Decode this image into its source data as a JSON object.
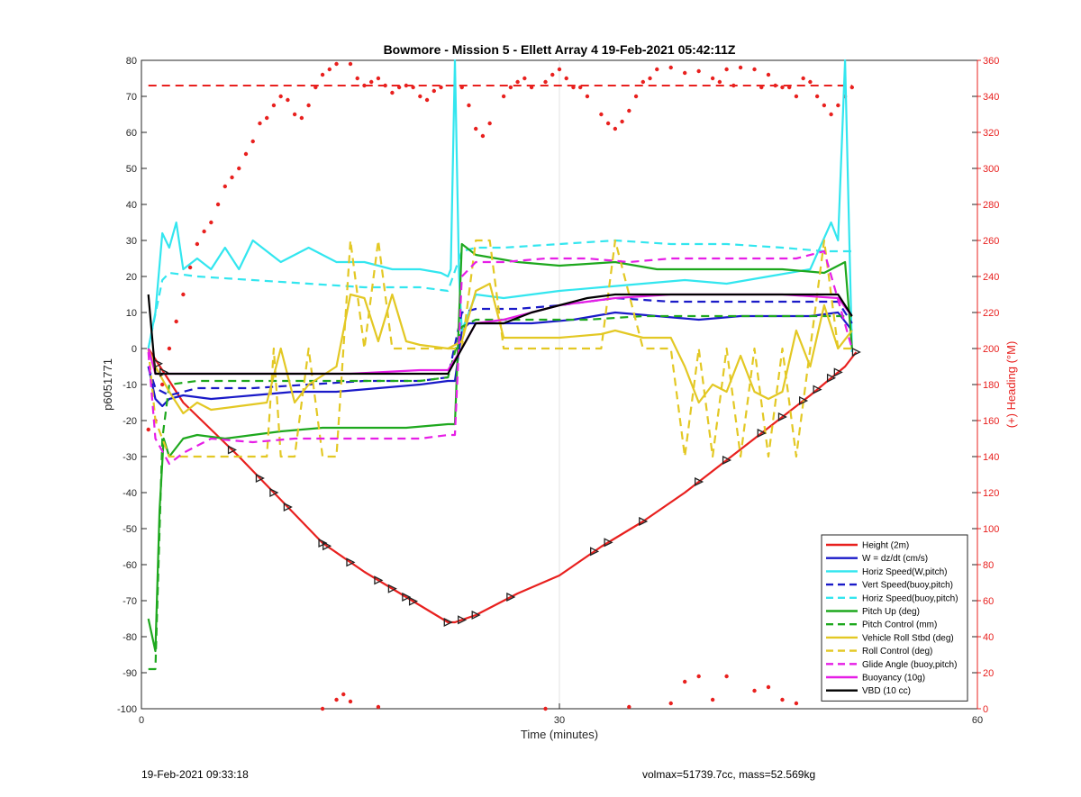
{
  "chart_data": {
    "type": "line",
    "title": "Bowmore - Mission 5 - Ellett Array 4 19-Feb-2021 05:42:11Z",
    "xlabel": "Time (minutes)",
    "ylabel": "p6051771",
    "y2label": "(+) Heading (°M)",
    "xlim": [
      0,
      60
    ],
    "ylim": [
      -100,
      80
    ],
    "y2lim": [
      0,
      360
    ],
    "xticks": [
      0,
      30,
      60
    ],
    "yticks": [
      -100,
      -90,
      -80,
      -70,
      -60,
      -50,
      -40,
      -30,
      -20,
      -10,
      0,
      10,
      20,
      30,
      40,
      50,
      60,
      70,
      80
    ],
    "y2ticks": [
      0,
      20,
      40,
      60,
      80,
      100,
      120,
      140,
      160,
      180,
      200,
      220,
      240,
      260,
      280,
      300,
      320,
      340,
      360
    ],
    "grid": "x-only",
    "legend_position": "bottom-right",
    "colors": {
      "red": "#e8201e",
      "blue": "#1a1ac8",
      "cyan": "#33e6ef",
      "green": "#1ea81e",
      "yellow": "#e3c824",
      "magenta": "#e61ee6",
      "black": "#000000"
    },
    "series": [
      {
        "name": "Height (2m)",
        "color": "#e8201e",
        "style": "solid",
        "x": [
          0.5,
          1,
          3,
          7,
          10,
          13,
          16,
          19,
          22,
          22.5,
          24,
          27,
          30,
          33,
          36,
          39,
          42,
          45,
          48,
          50.5,
          51.3
        ],
        "y": [
          0,
          -3,
          -15,
          -30,
          -42,
          -54,
          -62,
          -69,
          -76,
          -76,
          -74,
          -68,
          -63,
          -55,
          -48,
          -40,
          -31,
          -22,
          -13,
          -5,
          -1
        ]
      },
      {
        "name": "W = dz/dt (cm/s)",
        "color": "#1a1ac8",
        "style": "solid",
        "x": [
          0.5,
          1,
          1.5,
          2,
          3,
          5,
          8,
          11,
          14,
          17,
          20,
          22,
          22.5,
          23,
          23.5,
          25,
          28,
          31,
          34,
          37,
          40,
          43,
          46,
          48,
          50,
          51
        ],
        "y": [
          -5,
          -14,
          -16,
          -14,
          -13,
          -14,
          -13,
          -12,
          -12,
          -11,
          -10,
          -9,
          -9,
          5,
          7,
          7,
          7,
          8,
          10,
          9,
          8,
          9,
          9,
          9,
          10,
          5
        ]
      },
      {
        "name": "Horiz Speed(W,pitch)",
        "color": "#33e6ef",
        "style": "solid",
        "x": [
          0.5,
          1,
          1.5,
          2,
          2.5,
          3,
          4,
          5,
          6,
          7,
          8,
          10,
          12,
          14,
          16,
          18,
          20,
          21.5,
          22,
          22.2,
          22.5,
          22.8,
          23,
          23.5,
          24,
          26,
          28,
          30,
          33,
          36,
          39,
          42,
          45,
          48,
          49.5,
          50,
          50.5,
          51
        ],
        "y": [
          0,
          10,
          32,
          28,
          35,
          22,
          25,
          22,
          28,
          22,
          30,
          24,
          28,
          24,
          24,
          22,
          22,
          21,
          20,
          22,
          80,
          20,
          5,
          10,
          15,
          14,
          15,
          16,
          17,
          18,
          19,
          18,
          20,
          22,
          35,
          30,
          80,
          -1
        ]
      },
      {
        "name": "Vert Speed(buoy,pitch)",
        "color": "#1a1ac8",
        "style": "dashed",
        "x": [
          0.5,
          1,
          2,
          4,
          8,
          12,
          16,
          20,
          22,
          23,
          24,
          27,
          30,
          34,
          38,
          42,
          46,
          50,
          51
        ],
        "y": [
          -5,
          -11,
          -13,
          -11,
          -11,
          -10,
          -9,
          -9,
          -8,
          10,
          11,
          11,
          12,
          14,
          13,
          13,
          13,
          13,
          7
        ]
      },
      {
        "name": "Horiz Speed(buoy,pitch)",
        "color": "#33e6ef",
        "style": "dashed",
        "x": [
          0.5,
          1.5,
          2,
          4,
          8,
          12,
          16,
          20,
          22,
          23,
          24,
          26,
          30,
          34,
          38,
          42,
          46,
          49,
          51
        ],
        "y": [
          0,
          19,
          21,
          20,
          19,
          18,
          17,
          17,
          16,
          27,
          28,
          28,
          29,
          30,
          29,
          29,
          28,
          27,
          27
        ]
      },
      {
        "name": "Pitch Up (deg)",
        "color": "#1ea81e",
        "style": "solid",
        "x": [
          0.5,
          1,
          1.3,
          1.6,
          2,
          3,
          4,
          6,
          8,
          10,
          13,
          16,
          19,
          22,
          22.5,
          23,
          24,
          27,
          30,
          34,
          37,
          40,
          43,
          46,
          49,
          50.5,
          51
        ],
        "y": [
          -75,
          -84,
          -45,
          -25,
          -30,
          -25,
          -24,
          -25,
          -24,
          -23,
          -22,
          -22,
          -22,
          -21,
          -21,
          29,
          26,
          24,
          23,
          24,
          22,
          22,
          22,
          22,
          21,
          24,
          0
        ]
      },
      {
        "name": "Pitch Control (mm)",
        "color": "#1ea81e",
        "style": "dashed",
        "x": [
          0.5,
          1,
          1.5,
          2,
          4,
          8,
          12,
          16,
          20,
          22,
          23,
          24,
          28,
          32,
          36,
          40,
          44,
          48,
          51
        ],
        "y": [
          -89,
          -89,
          -25,
          -10,
          -9,
          -9,
          -9,
          -9,
          -9,
          -8,
          6,
          8,
          8,
          8,
          9,
          9,
          9,
          9,
          9
        ]
      },
      {
        "name": "Vehicle Roll Stbd (deg)",
        "color": "#e3c824",
        "style": "solid",
        "x": [
          0.5,
          1,
          2,
          3,
          4,
          5,
          7,
          9,
          10,
          11,
          12,
          14,
          15,
          16,
          17,
          18,
          19,
          20,
          22,
          23,
          24,
          25,
          26,
          27,
          30,
          33,
          34,
          36,
          38,
          39,
          40,
          41,
          42,
          43,
          44,
          45,
          46,
          47,
          48,
          49,
          50,
          51
        ],
        "y": [
          0,
          -5,
          -12,
          -18,
          -15,
          -17,
          -16,
          -15,
          0,
          -15,
          -10,
          -5,
          15,
          14,
          2,
          15,
          2,
          1,
          0,
          2,
          16,
          18,
          3,
          3,
          3,
          4,
          5,
          3,
          3,
          -5,
          -15,
          -10,
          -12,
          -2,
          -12,
          -14,
          -12,
          5,
          -5,
          12,
          0,
          5
        ]
      },
      {
        "name": "Roll Control (deg)",
        "color": "#e3c824",
        "style": "dashed",
        "x": [
          0.5,
          1,
          2,
          4,
          6,
          8,
          9,
          9.5,
          10,
          11,
          12,
          13,
          14,
          15,
          16,
          17,
          18,
          20,
          22,
          23,
          24,
          25,
          26,
          27,
          30,
          33,
          34,
          36,
          37,
          38,
          39,
          40,
          41,
          42,
          43,
          44,
          45,
          46,
          47,
          48,
          49,
          50,
          51
        ],
        "y": [
          0,
          -20,
          -30,
          -30,
          -30,
          -30,
          -30,
          0,
          -30,
          -30,
          0,
          -30,
          -30,
          30,
          0,
          30,
          0,
          0,
          0,
          0,
          30,
          30,
          0,
          0,
          0,
          0,
          30,
          0,
          0,
          0,
          -30,
          0,
          -30,
          0,
          -30,
          0,
          -30,
          0,
          -30,
          0,
          30,
          0,
          0
        ]
      },
      {
        "name": "Glide Angle (buoy,pitch)",
        "color": "#e61ee6",
        "style": "dashed",
        "x": [
          0.5,
          1,
          2,
          3,
          5,
          8,
          11,
          14,
          17,
          20,
          22,
          22.5,
          23,
          24,
          26,
          29,
          32,
          35,
          38,
          41,
          44,
          47,
          49,
          51
        ],
        "y": [
          -1,
          -25,
          -32,
          -29,
          -25,
          -26,
          -25,
          -25,
          -25,
          -25,
          -24,
          -24,
          20,
          24,
          24,
          25,
          25,
          24,
          25,
          25,
          25,
          25,
          27,
          0
        ]
      },
      {
        "name": "Buoyancy (10g)",
        "color": "#e61ee6",
        "style": "solid",
        "x": [
          0.5,
          1,
          2,
          5,
          10,
          15,
          20,
          22,
          23,
          24,
          26,
          28,
          30,
          32,
          34,
          38,
          42,
          46,
          50,
          51
        ],
        "y": [
          0,
          -7,
          -7,
          -7,
          -7,
          -7,
          -6,
          -6,
          0,
          7,
          8,
          10,
          12,
          13,
          14,
          15,
          15,
          15,
          14,
          9
        ]
      },
      {
        "name": "VBD (10 cc)",
        "color": "#000000",
        "style": "solid",
        "x": [
          0.5,
          1,
          2,
          5,
          10,
          15,
          20,
          22,
          23,
          24,
          26,
          28,
          30,
          32,
          34,
          38,
          42,
          46,
          50,
          51
        ],
        "y": [
          15,
          -7,
          -7,
          -7,
          -7,
          -7,
          -7,
          -7,
          0,
          7,
          7,
          10,
          12,
          14,
          15,
          15,
          15,
          15,
          15,
          9
        ]
      }
    ],
    "reference_lines": [
      {
        "axis": "y2",
        "value": 346,
        "color": "#e8201e",
        "style": "dashed"
      }
    ],
    "heading_points": {
      "color": "#e8201e",
      "x": [
        0.5,
        1,
        1.5,
        2,
        2.5,
        3,
        3.5,
        4,
        4.5,
        5,
        5.5,
        6,
        6.5,
        7,
        7.5,
        8,
        8.5,
        9,
        9.5,
        10,
        10.5,
        11,
        11.5,
        12,
        12.5,
        13,
        13.5,
        14,
        15,
        15.5,
        16,
        16.5,
        17,
        17.5,
        18,
        18.5,
        19,
        19.5,
        20,
        20.5,
        21,
        21.5,
        23,
        23.5,
        24,
        24.5,
        25,
        26,
        26.5,
        27,
        27.5,
        28,
        29,
        29.5,
        30,
        30.5,
        31,
        31.5,
        32,
        33,
        33.5,
        34,
        34.5,
        35,
        35.5,
        36,
        36.5,
        37,
        38,
        39,
        40,
        41,
        41.5,
        42,
        42.5,
        43,
        44,
        44.5,
        45,
        45.5,
        46,
        46.5,
        47,
        47.5,
        48,
        48.5,
        49,
        49.5,
        50,
        50.5,
        51,
        13,
        14,
        14.5,
        15,
        17,
        29,
        35,
        38,
        39,
        40,
        41,
        42,
        44,
        45,
        46,
        47
      ],
      "y": [
        155,
        160,
        180,
        200,
        215,
        230,
        245,
        258,
        265,
        270,
        280,
        290,
        295,
        300,
        308,
        315,
        325,
        328,
        335,
        340,
        338,
        330,
        328,
        335,
        345,
        352,
        355,
        358,
        358,
        350,
        346,
        348,
        350,
        346,
        342,
        345,
        346,
        345,
        340,
        338,
        343,
        345,
        345,
        335,
        322,
        318,
        325,
        340,
        345,
        348,
        350,
        345,
        348,
        352,
        355,
        350,
        345,
        345,
        340,
        330,
        325,
        322,
        326,
        332,
        340,
        348,
        350,
        355,
        356,
        353,
        354,
        350,
        348,
        355,
        346,
        356,
        355,
        345,
        352,
        346,
        345,
        345,
        340,
        350,
        348,
        340,
        335,
        330,
        335,
        340,
        345,
        0,
        5,
        8,
        4,
        1,
        0,
        1,
        3,
        15,
        18,
        5,
        18,
        10,
        12,
        5,
        3
      ]
    }
  },
  "footer": {
    "left": "19-Feb-2021 09:33:18",
    "right": "volmax=51739.7cc, mass=52.569kg"
  }
}
